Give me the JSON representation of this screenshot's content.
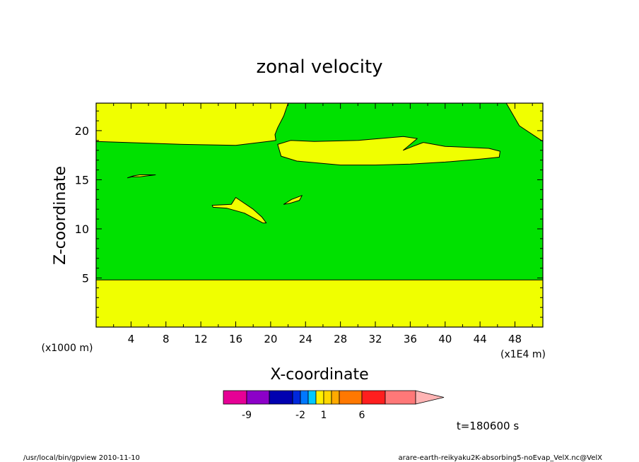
{
  "chart_data": {
    "type": "heatmap",
    "title": "zonal velocity",
    "xlabel": "X-coordinate",
    "ylabel": "Z-coordinate",
    "x_unit_label": "(x1E4 m)",
    "y_unit_label": "(x1000 m)",
    "xlim": [
      0,
      51.2
    ],
    "ylim": [
      0,
      22.8
    ],
    "x_ticks": [
      4,
      8,
      12,
      16,
      20,
      24,
      28,
      32,
      36,
      40,
      44,
      48
    ],
    "y_ticks": [
      5,
      10,
      15,
      20
    ],
    "x_tick_labels": [
      "4",
      "8",
      "12",
      "16",
      "20",
      "24",
      "28",
      "32",
      "36",
      "40",
      "44",
      "48"
    ],
    "y_tick_labels": [
      "5",
      "10",
      "15",
      "20"
    ],
    "regions": [
      {
        "name": "green",
        "color": "#00e100",
        "polygon": [
          [
            0,
            4.8
          ],
          [
            51.2,
            4.8
          ],
          [
            51.2,
            18.9
          ],
          [
            48.5,
            20.5
          ],
          [
            47.0,
            22.8
          ],
          [
            22.0,
            22.8
          ],
          [
            21.5,
            21.5
          ],
          [
            20.8,
            20.3
          ],
          [
            20.5,
            19.6
          ],
          [
            20.6,
            19.0
          ],
          [
            16.0,
            18.5
          ],
          [
            10.0,
            18.6
          ],
          [
            0,
            18.9
          ]
        ]
      },
      {
        "name": "yellow-band-upper",
        "color": "#f0ff00",
        "polygon": [
          [
            20.8,
            18.6
          ],
          [
            21.2,
            17.4
          ],
          [
            23.0,
            16.9
          ],
          [
            28.0,
            16.5
          ],
          [
            32.0,
            16.5
          ],
          [
            36.0,
            16.6
          ],
          [
            40.0,
            16.8
          ],
          [
            44.0,
            17.1
          ],
          [
            46.2,
            17.3
          ],
          [
            46.3,
            17.9
          ],
          [
            45.0,
            18.2
          ],
          [
            40.0,
            18.4
          ],
          [
            37.5,
            18.8
          ],
          [
            36.3,
            18.4
          ],
          [
            35.2,
            18.0
          ],
          [
            36.8,
            19.2
          ],
          [
            35.2,
            19.4
          ],
          [
            30.0,
            19.0
          ],
          [
            25.0,
            18.9
          ],
          [
            22.3,
            19.0
          ]
        ]
      },
      {
        "name": "yellow-blob-1",
        "color": "#f0ff00",
        "polygon": [
          [
            13.3,
            12.4
          ],
          [
            15.5,
            12.5
          ],
          [
            16.0,
            13.2
          ],
          [
            18.0,
            12.0
          ],
          [
            19.0,
            11.2
          ],
          [
            19.5,
            10.6
          ],
          [
            19.1,
            10.6
          ],
          [
            17.0,
            11.6
          ],
          [
            15.0,
            12.1
          ],
          [
            13.4,
            12.2
          ]
        ]
      },
      {
        "name": "yellow-blob-2",
        "color": "#f0ff00",
        "polygon": [
          [
            21.5,
            12.5
          ],
          [
            22.4,
            13.0
          ],
          [
            23.6,
            13.4
          ],
          [
            23.3,
            12.9
          ],
          [
            22.2,
            12.6
          ]
        ]
      },
      {
        "name": "yellow-sliver",
        "color": "#f0ff00",
        "polygon": [
          [
            3.6,
            15.2
          ],
          [
            4.3,
            15.4
          ],
          [
            5.0,
            15.5
          ],
          [
            6.8,
            15.5
          ],
          [
            5.0,
            15.3
          ],
          [
            4.1,
            15.3
          ]
        ]
      }
    ],
    "background_color": "#f0ff00",
    "grid": false,
    "colorbar": {
      "colors": [
        "#e60095",
        "#8c00c8",
        "#0000b0",
        "#0028dc",
        "#0078ff",
        "#00c8ff",
        "#fff000",
        "#ffd700",
        "#ffaa00",
        "#ff7800",
        "#ff1e1e",
        "#ff7878",
        "#ffb4b4"
      ],
      "tick_labels": [
        "-9",
        "-2",
        "1",
        "6"
      ]
    },
    "time_label": "t=180600 s"
  },
  "footer": {
    "left": "/usr/local/bin/gpview  2010-11-10",
    "right": "arare-earth-reikyaku2K-absorbing5-noEvap_VelX.nc@VelX"
  }
}
